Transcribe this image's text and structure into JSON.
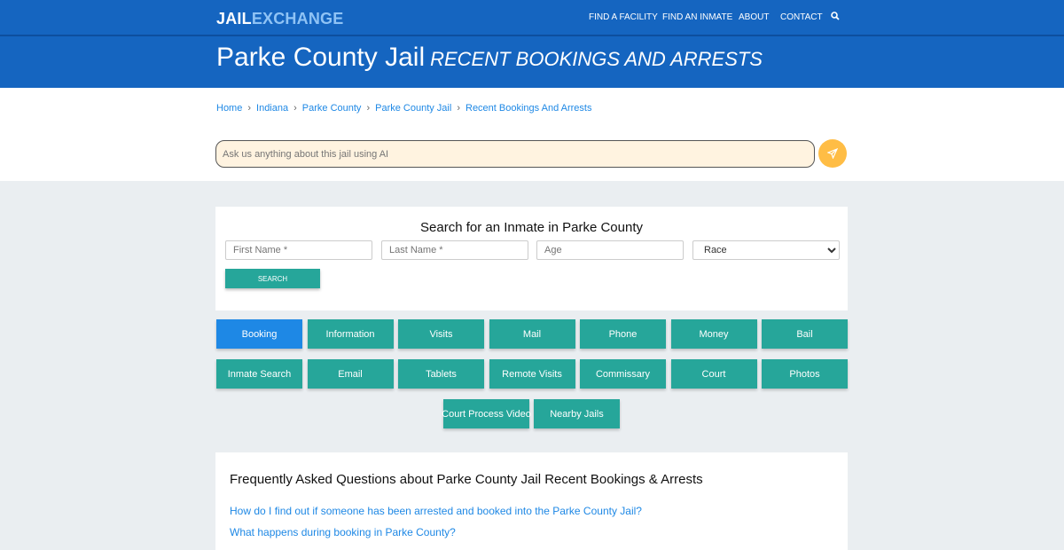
{
  "header": {
    "logo_part1": "JAIL",
    "logo_part2": "EXCHANGE",
    "nav": [
      "FIND A FACILITY",
      "FIND AN INMATE",
      "ABOUT",
      "CONTACT"
    ],
    "search_icon": "search-icon"
  },
  "hero": {
    "title": "Parke County Jail",
    "subtitle": "RECENT BOOKINGS AND ARRESTS"
  },
  "breadcrumb": [
    "Home",
    "Indiana",
    "Parke County",
    "Parke County Jail",
    "Recent Bookings And Arrests"
  ],
  "ai": {
    "placeholder": "Ask us anything about this jail using AI",
    "send_icon": "paper-plane-icon"
  },
  "search": {
    "title": "Search for an Inmate in Parke County",
    "first_name": "First Name *",
    "last_name": "Last Name *",
    "age": "Age",
    "race": "Race",
    "button": "SEARCH"
  },
  "tabs": [
    "Booking",
    "Information",
    "Visits",
    "Mail",
    "Phone",
    "Money",
    "Bail",
    "Inmate Search",
    "Email",
    "Tablets",
    "Remote Visits",
    "Commissary",
    "Court",
    "Photos",
    "Court Process Video",
    "Nearby Jails"
  ],
  "faq": {
    "title": "Frequently Asked Questions about Parke County Jail Recent Bookings & Arrests",
    "questions": [
      "How do I find out if someone has been arrested and booked into the Parke County Jail?",
      "What happens during booking in Parke County?"
    ]
  },
  "colors": {
    "header": "#1565c0",
    "teal": "#26a69a",
    "active": "#1e88e5",
    "send": "#ffbd45"
  }
}
